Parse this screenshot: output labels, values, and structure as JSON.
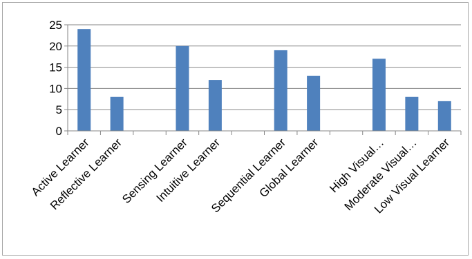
{
  "chart_data": {
    "type": "bar",
    "title": "",
    "xlabel": "",
    "ylabel": "",
    "ylim": [
      0,
      25
    ],
    "yticks": [
      0,
      5,
      10,
      15,
      20,
      25
    ],
    "grid": true,
    "legend": "none",
    "bar_color": "#4f81bd",
    "categories": [
      "Active Learner",
      "Reflective Learner",
      "",
      "Sensing Learner",
      "Intuitive Learner",
      "",
      "Sequential Learner",
      "Global Learner",
      "",
      "High Visual…",
      "Moderate Visual…",
      "Low Visual Learner"
    ],
    "values": [
      24,
      8,
      null,
      20,
      12,
      null,
      19,
      13,
      null,
      17,
      8,
      7
    ]
  }
}
